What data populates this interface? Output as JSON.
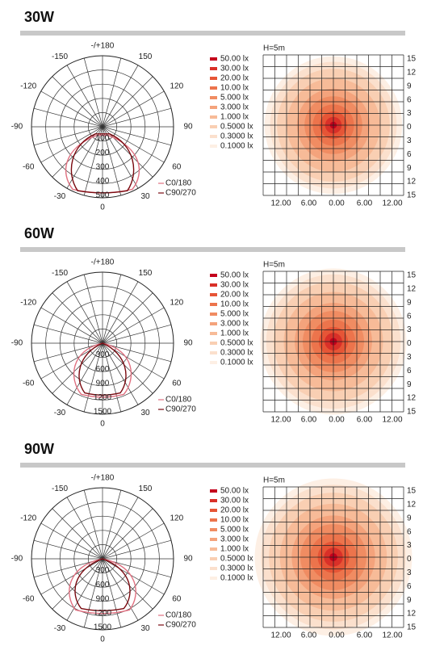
{
  "sections": [
    {
      "title": "30W",
      "polar": {
        "angle_labels": [
          "-/+180",
          "-150",
          "150",
          "-120",
          "120",
          "-90",
          "90",
          "-60",
          "60",
          "-30",
          "30",
          "0"
        ],
        "radial_labels": [
          "100",
          "200",
          "300",
          "400",
          "500"
        ],
        "legend": [
          "C0/180",
          "C90/270"
        ]
      },
      "isolux": {
        "height_label": "H=5m",
        "legend": [
          "50.00 lx",
          "30.00 lx",
          "20.00 lx",
          "10.00 lx",
          "5.000 lx",
          "3.000 lx",
          "1.000 lx",
          "0.5000 lx",
          "0.3000 lx",
          "0.1000 lx"
        ],
        "x_labels": [
          "12.00",
          "6.00",
          "0.00",
          "6.00",
          "12.00"
        ],
        "y_labels": [
          "15",
          "12",
          "9",
          "6",
          "3",
          "0",
          "3",
          "6",
          "9",
          "12",
          "15"
        ]
      }
    },
    {
      "title": "60W",
      "polar": {
        "angle_labels": [
          "-/+180",
          "-150",
          "150",
          "-120",
          "120",
          "-90",
          "90",
          "-60",
          "60",
          "-30",
          "30",
          "0"
        ],
        "radial_labels": [
          "300",
          "600",
          "900",
          "1200",
          "1500"
        ],
        "legend": [
          "C0/180",
          "C90/270"
        ]
      },
      "isolux": {
        "height_label": "H=5m",
        "legend": [
          "50.00 lx",
          "30.00 lx",
          "20.00 lx",
          "10.00 lx",
          "5.000 lx",
          "3.000 lx",
          "1.000 lx",
          "0.5000 lx",
          "0.3000 lx",
          "0.1000 lx"
        ],
        "x_labels": [
          "12.00",
          "6.00",
          "0.00",
          "6.00",
          "12.00"
        ],
        "y_labels": [
          "15",
          "12",
          "9",
          "6",
          "3",
          "0",
          "3",
          "6",
          "9",
          "12",
          "15"
        ]
      }
    },
    {
      "title": "90W",
      "polar": {
        "angle_labels": [
          "-/+180",
          "-150",
          "150",
          "-120",
          "120",
          "-90",
          "90",
          "-60",
          "60",
          "-30",
          "30",
          "0"
        ],
        "radial_labels": [
          "300",
          "600",
          "900",
          "1200",
          "1500"
        ],
        "legend": [
          "C0/180",
          "C90/270"
        ]
      },
      "isolux": {
        "height_label": "H=5m",
        "legend": [
          "50.00 lx",
          "30.00 lx",
          "20.00 lx",
          "10.00 lx",
          "5.000 lx",
          "3.000 lx",
          "1.000 lx",
          "0.5000 lx",
          "0.3000 lx",
          "0.1000 lx"
        ],
        "x_labels": [
          "12.00",
          "6.00",
          "0.00",
          "6.00",
          "12.00"
        ],
        "y_labels": [
          "15",
          "12",
          "9",
          "6",
          "3",
          "0",
          "3",
          "6",
          "9",
          "12",
          "15"
        ]
      }
    }
  ]
}
